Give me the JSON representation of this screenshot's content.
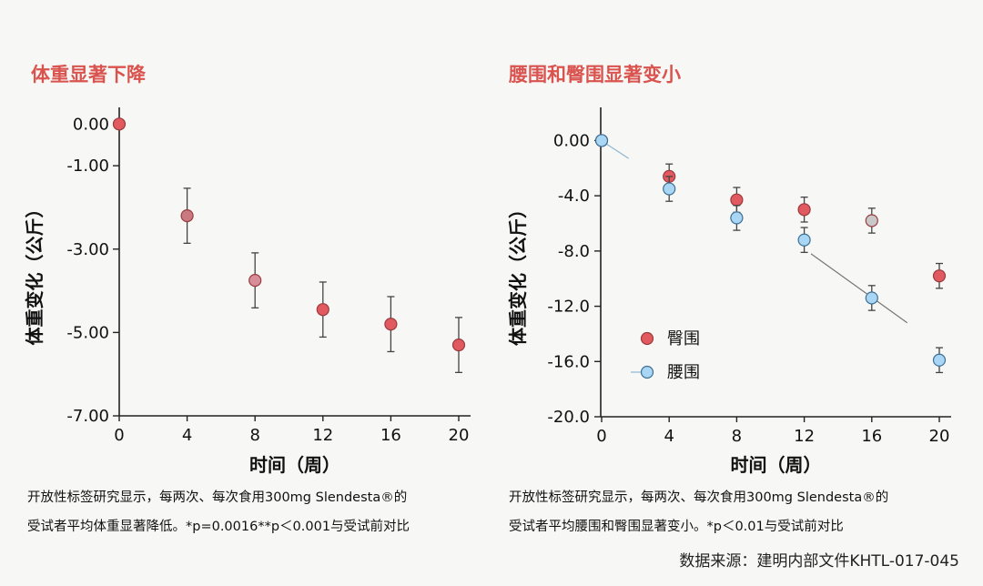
{
  "left_title": "体重显著下降",
  "right_title": "腰围和臀围显著变小",
  "left_caption_line1": "开放性标签研究显示，每两次、每次食用300mg Slendesta®的",
  "left_caption_line2": "受试者平均体重显著降低。*p=0.0016**p＜0.001与受试前对比",
  "right_caption_line1": "开放性标签研究显示，每两次、每次食用300mg Slendesta®的",
  "right_caption_line2": "受试者平均腰围和臀围显著变小。*p＜0.01与受试前对比",
  "source": "数据来源：建明内部文件KHTL-017-045",
  "colors": {
    "red_marker": "#e05a5f",
    "blue_marker": "#a9d6f5",
    "title": "#d9534f"
  },
  "chart_data": [
    {
      "type": "scatter",
      "title": "体重显著下降",
      "xlabel": "时间（周）",
      "ylabel": "体重变化（公斤）",
      "x": [
        0,
        4,
        8,
        12,
        16,
        20
      ],
      "x_ticks": [
        "0",
        "4",
        "8",
        "12",
        "16",
        "20"
      ],
      "y_ticks": [
        "0.00",
        "-1.00",
        "-3.00",
        "-5.00",
        "-7.00"
      ],
      "y_tick_values": [
        0,
        -1,
        -3,
        -5,
        -7
      ],
      "ylim": [
        -7,
        0.4
      ],
      "series": [
        {
          "values": [
            0.0,
            -2.2,
            -3.75,
            -4.45,
            -4.8,
            -5.3
          ],
          "err": [
            0,
            0.66,
            0.66,
            0.66,
            0.66,
            0.66
          ]
        }
      ]
    },
    {
      "type": "scatter",
      "title": "腰围和臀围显著变小",
      "xlabel": "时间（周）",
      "ylabel": "体重变化（公斤）",
      "x": [
        0,
        4,
        8,
        12,
        16,
        20
      ],
      "x_ticks": [
        "0",
        "4",
        "8",
        "12",
        "16",
        "20"
      ],
      "y_ticks": [
        "0.00",
        "-4.0",
        "-8.0",
        "-12.0",
        "-16.0",
        "-20.0"
      ],
      "y_tick_values": [
        0,
        -4,
        -8,
        -12,
        -16,
        -20
      ],
      "ylim": [
        -20,
        2.4
      ],
      "legend_position": "center-left",
      "series": [
        {
          "name": "臀围",
          "values": [
            0.0,
            -2.6,
            -4.3,
            -5.0,
            -5.8,
            -9.8
          ],
          "err": [
            0,
            0.9,
            0.9,
            0.9,
            0.9,
            0.9
          ]
        },
        {
          "name": "腰围",
          "values": [
            0.0,
            -3.5,
            -5.6,
            -7.2,
            -11.4,
            -15.9
          ],
          "err": [
            0,
            0.9,
            0.9,
            0.9,
            0.9,
            0.9
          ]
        }
      ]
    }
  ]
}
